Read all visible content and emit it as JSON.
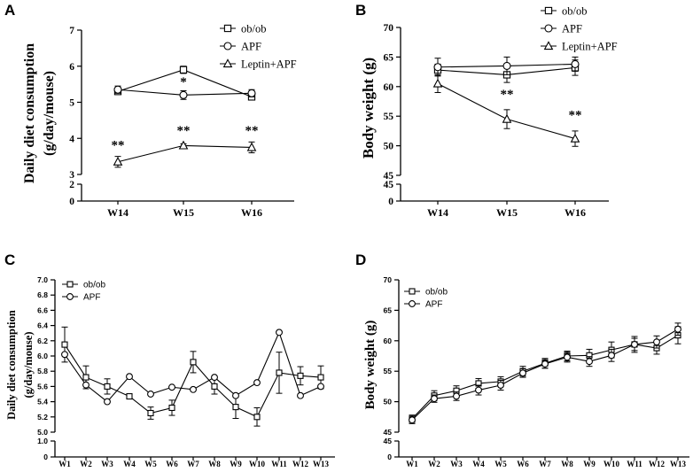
{
  "chart_data": [
    {
      "panel": "A",
      "type": "line",
      "ylabel_line1": "Daily diet consumption",
      "ylabel_line2": "(g/day/mouse)",
      "xlabel": "",
      "categories": [
        "W14",
        "W15",
        "W16"
      ],
      "ylim_lower": [
        0,
        2
      ],
      "ylim_upper": [
        3,
        7
      ],
      "yticks": [
        "0",
        "2",
        "3",
        "4",
        "5",
        "6",
        "7"
      ],
      "series": [
        {
          "name": "ob/ob",
          "marker": "square",
          "values": [
            5.3,
            5.9,
            5.15
          ],
          "errors": [
            0.07,
            0.1,
            0.08
          ]
        },
        {
          "name": "APF",
          "marker": "circle",
          "values": [
            5.35,
            5.2,
            5.25
          ],
          "errors": [
            0.1,
            0.12,
            0.1
          ]
        },
        {
          "name": "Leptin+APF",
          "marker": "triangle",
          "values": [
            3.35,
            3.8,
            3.75
          ],
          "errors": [
            0.15,
            0.05,
            0.15
          ]
        }
      ],
      "annotations": [
        {
          "category": "W15",
          "y": 5.45,
          "text": "*"
        },
        {
          "category": "W14",
          "y": 3.7,
          "text": "**"
        },
        {
          "category": "W15",
          "y": 4.1,
          "text": "**"
        },
        {
          "category": "W16",
          "y": 4.1,
          "text": "**"
        }
      ]
    },
    {
      "panel": "B",
      "type": "line",
      "ylabel": "Body weight (g)",
      "xlabel": "",
      "categories": [
        "W14",
        "W15",
        "W16"
      ],
      "ylim_lower": [
        0,
        45
      ],
      "ylim_upper": [
        45,
        70
      ],
      "yticks": [
        "0",
        "45",
        "45",
        "50",
        "55",
        "60",
        "65",
        "70"
      ],
      "series": [
        {
          "name": "ob/ob",
          "marker": "square",
          "values": [
            62.8,
            62.0,
            63.2
          ],
          "errors": [
            1.0,
            1.3,
            1.3
          ]
        },
        {
          "name": "APF",
          "marker": "circle",
          "values": [
            63.3,
            63.5,
            63.8
          ],
          "errors": [
            1.5,
            1.5,
            1.2
          ]
        },
        {
          "name": "Leptin+APF",
          "marker": "triangle",
          "values": [
            60.5,
            54.5,
            51.2
          ],
          "errors": [
            1.5,
            1.6,
            1.3
          ]
        }
      ],
      "annotations": [
        {
          "category": "W15",
          "y": 58.0,
          "text": "**"
        },
        {
          "category": "W16",
          "y": 54.5,
          "text": "**"
        }
      ]
    },
    {
      "panel": "C",
      "type": "line",
      "ylabel_line1": "Daily diet consumption",
      "ylabel_line2": "(g/day/mouse)",
      "xlabel": "",
      "categories": [
        "W1",
        "W2",
        "W3",
        "W4",
        "W5",
        "W6",
        "W7",
        "W8",
        "W9",
        "W10",
        "W11",
        "W12",
        "W13"
      ],
      "ylim_lower": [
        0,
        1.0
      ],
      "ylim_upper": [
        5.0,
        7.0
      ],
      "yticks": [
        "0",
        "1.0",
        "5.0",
        "5.2",
        "5.4",
        "5.6",
        "5.8",
        "6.0",
        "6.2",
        "6.4",
        "6.6",
        "6.8",
        "7.0"
      ],
      "series": [
        {
          "name": "ob/ob",
          "marker": "square",
          "values": [
            6.15,
            5.72,
            5.6,
            5.47,
            5.25,
            5.32,
            5.92,
            5.6,
            5.33,
            5.2,
            5.78,
            5.74,
            5.72
          ],
          "errors": [
            0.23,
            0.15,
            0.1,
            0.02,
            0.08,
            0.1,
            0.14,
            0.1,
            0.15,
            0.12,
            0.27,
            0.12,
            0.15
          ]
        },
        {
          "name": "APF",
          "marker": "circle",
          "values": [
            6.02,
            5.62,
            5.4,
            5.73,
            5.5,
            5.59,
            5.56,
            5.72,
            5.48,
            5.65,
            6.31,
            5.48,
            5.6
          ]
        }
      ]
    },
    {
      "panel": "D",
      "type": "line",
      "ylabel": "Body weight (g)",
      "xlabel": "",
      "categories": [
        "W1",
        "W2",
        "W3",
        "W4",
        "W5",
        "W6",
        "W7",
        "W8",
        "W9",
        "W10",
        "W11",
        "W12",
        "W13"
      ],
      "ylim_lower": [
        0,
        45
      ],
      "ylim_upper": [
        45,
        70
      ],
      "yticks": [
        "0",
        "45",
        "45",
        "50",
        "55",
        "60",
        "65",
        "70"
      ],
      "series": [
        {
          "name": "ob/ob",
          "marker": "square",
          "values": [
            47.2,
            51.0,
            51.8,
            53.0,
            53.3,
            55.0,
            56.3,
            57.5,
            57.6,
            58.5,
            59.4,
            58.8,
            60.9
          ],
          "errors": [
            0.6,
            0.8,
            0.8,
            0.8,
            0.8,
            0.8,
            0.8,
            0.8,
            1.0,
            1.3,
            1.3,
            1.0,
            1.4
          ]
        },
        {
          "name": "APF",
          "marker": "circle",
          "values": [
            47.0,
            50.5,
            50.9,
            51.9,
            52.7,
            54.7,
            56.2,
            57.3,
            56.6,
            57.6,
            59.4,
            59.8,
            61.9
          ],
          "errors": [
            0.6,
            0.6,
            0.7,
            0.8,
            0.8,
            0.7,
            0.7,
            0.8,
            0.8,
            1.0,
            1.0,
            1.0,
            1.0
          ]
        }
      ]
    }
  ]
}
